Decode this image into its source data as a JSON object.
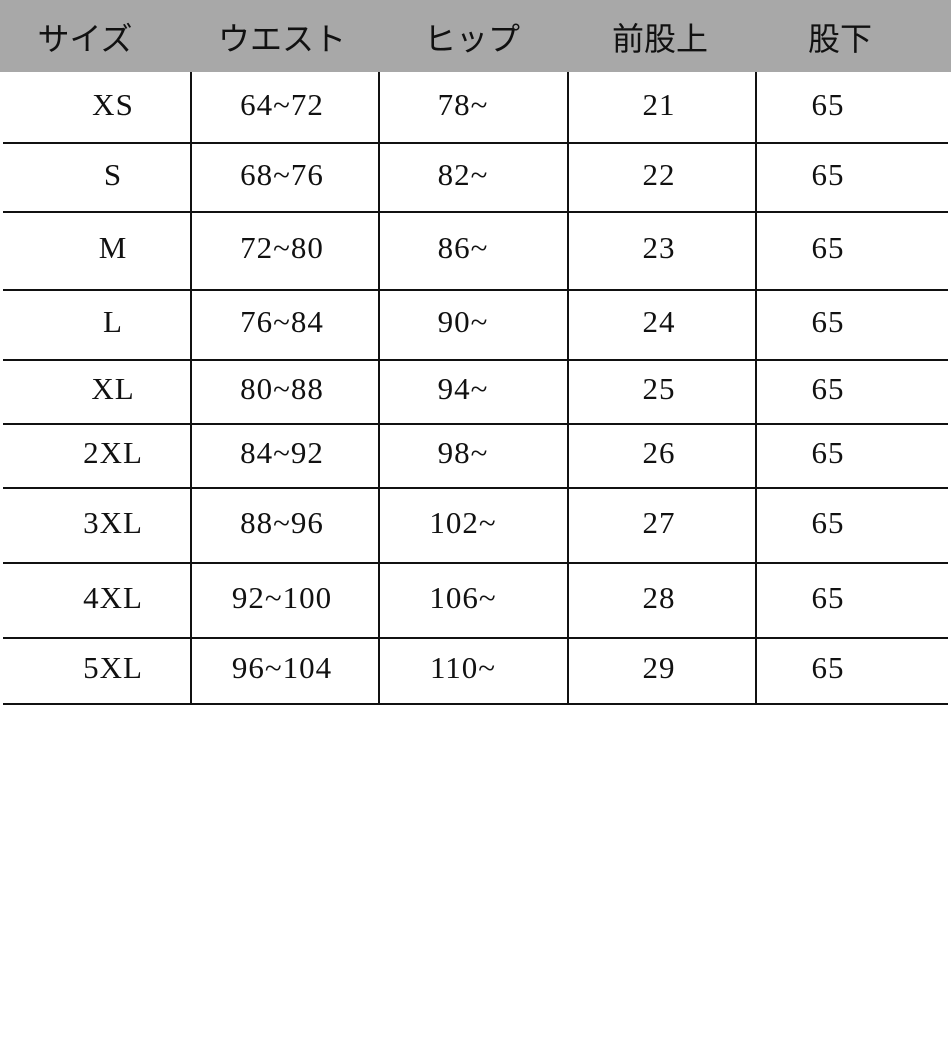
{
  "headers": [
    "サイズ",
    "ウエスト",
    "ヒップ",
    "前股上",
    "股下"
  ],
  "rows": [
    [
      "XS",
      "64~72",
      "78~",
      "21",
      "65"
    ],
    [
      "S",
      "68~76",
      "82~",
      "22",
      "65"
    ],
    [
      "M",
      "72~80",
      "86~",
      "23",
      "65"
    ],
    [
      "L",
      "76~84",
      "90~",
      "24",
      "65"
    ],
    [
      "XL",
      "80~88",
      "94~",
      "25",
      "65"
    ],
    [
      "2XL",
      "84~92",
      "98~",
      "26",
      "65"
    ],
    [
      "3XL",
      "88~96",
      "102~",
      "27",
      "65"
    ],
    [
      "4XL",
      "92~100",
      "106~",
      "28",
      "65"
    ],
    [
      "5XL",
      "96~104",
      "110~",
      "29",
      "65"
    ]
  ],
  "colors": {
    "header_bg": "#a8a8a8",
    "lines": "#111111"
  }
}
